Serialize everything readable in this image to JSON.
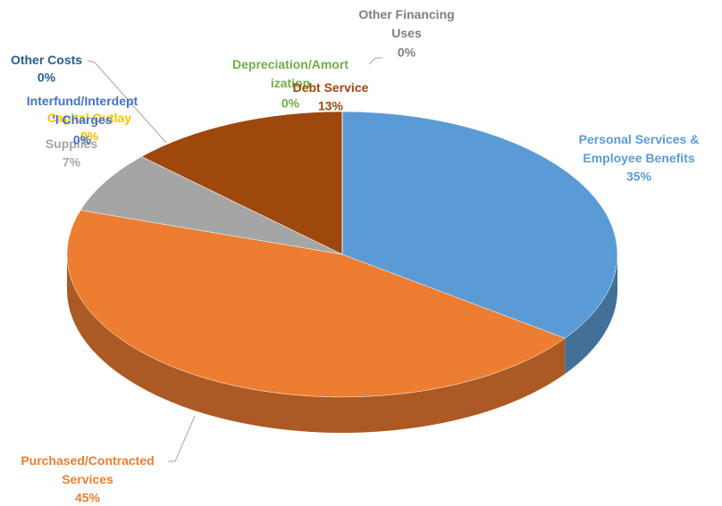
{
  "chart_data": {
    "type": "pie",
    "categories": [
      "Personal Services &\nEmployee Benefits",
      "Purchased/Contracted\nServices",
      "Supplies",
      "Capital Outlay",
      "Interfund/Interdept\n'l Charges",
      "Other Costs",
      "Depreciation/Amort\nization",
      "Debt Service",
      "Other Financing\nUses"
    ],
    "values": [
      35,
      45,
      7,
      0,
      0,
      0,
      0,
      13,
      0
    ],
    "value_labels": [
      "35%",
      "45%",
      "7%",
      "0%",
      "0%",
      "0%",
      "0%",
      "13%",
      "0%"
    ],
    "colors": [
      "#5b9bd5",
      "#ed7d31",
      "#a5a5a5",
      "#ffc000",
      "#4472c4",
      "#255e91",
      "#70ad47",
      "#9e480e",
      "#7f7f7f"
    ]
  }
}
